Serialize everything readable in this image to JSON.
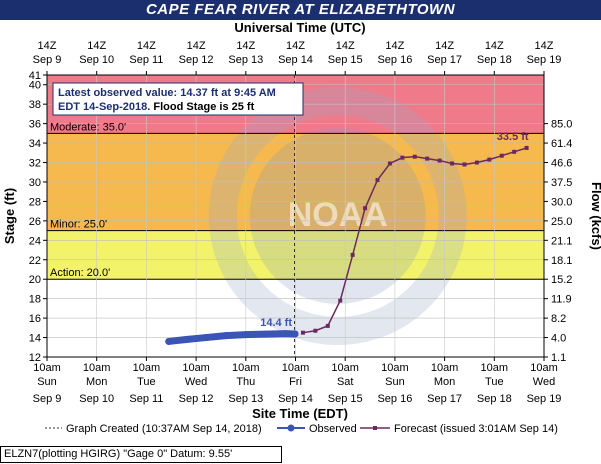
{
  "title": "CAPE FEAR RIVER AT ELIZABETHTOWN",
  "top_axis_title": "Universal Time (UTC)",
  "bottom_axis_title": "Site Time (EDT)",
  "left_axis_title": "Stage (ft)",
  "right_axis_title": "Flow (kcfs)",
  "utc_ticks": [
    {
      "hour": "14Z",
      "date": "Sep 9"
    },
    {
      "hour": "14Z",
      "date": "Sep 10"
    },
    {
      "hour": "14Z",
      "date": "Sep 11"
    },
    {
      "hour": "14Z",
      "date": "Sep 12"
    },
    {
      "hour": "14Z",
      "date": "Sep 13"
    },
    {
      "hour": "14Z",
      "date": "Sep 14"
    },
    {
      "hour": "14Z",
      "date": "Sep 15"
    },
    {
      "hour": "14Z",
      "date": "Sep 16"
    },
    {
      "hour": "14Z",
      "date": "Sep 17"
    },
    {
      "hour": "14Z",
      "date": "Sep 18"
    },
    {
      "hour": "14Z",
      "date": "Sep 19"
    }
  ],
  "edt_ticks": [
    {
      "time": "10am",
      "day": "Sun",
      "date": "Sep 9"
    },
    {
      "time": "10am",
      "day": "Mon",
      "date": "Sep 10"
    },
    {
      "time": "10am",
      "day": "Tue",
      "date": "Sep 11"
    },
    {
      "time": "10am",
      "day": "Wed",
      "date": "Sep 12"
    },
    {
      "time": "10am",
      "day": "Thu",
      "date": "Sep 13"
    },
    {
      "time": "10am",
      "day": "Fri",
      "date": "Sep 14"
    },
    {
      "time": "10am",
      "day": "Sat",
      "date": "Sep 15"
    },
    {
      "time": "10am",
      "day": "Sun",
      "date": "Sep 16"
    },
    {
      "time": "10am",
      "day": "Mon",
      "date": "Sep 17"
    },
    {
      "time": "10am",
      "day": "Tue",
      "date": "Sep 18"
    },
    {
      "time": "10am",
      "day": "Wed",
      "date": "Sep 19"
    }
  ],
  "stage_ticks": [
    12,
    14,
    16,
    18,
    20,
    22,
    24,
    26,
    28,
    30,
    32,
    34,
    36,
    38,
    40,
    41
  ],
  "flow_ticks": [
    {
      "stage": 12,
      "label": "1.1"
    },
    {
      "stage": 14,
      "label": "4.0"
    },
    {
      "stage": 16,
      "label": "8.2"
    },
    {
      "stage": 18,
      "label": "11.9"
    },
    {
      "stage": 20,
      "label": "15.2"
    },
    {
      "stage": 22,
      "label": "18.1"
    },
    {
      "stage": 24,
      "label": "21.1"
    },
    {
      "stage": 26,
      "label": "25.0"
    },
    {
      "stage": 28,
      "label": "30.0"
    },
    {
      "stage": 30,
      "label": "37.5"
    },
    {
      "stage": 32,
      "label": "46.6"
    },
    {
      "stage": 34,
      "label": "61.4"
    },
    {
      "stage": 36,
      "label": "85.0"
    }
  ],
  "colors": {
    "title_bg": "#1b2f6e",
    "major_band": "#f07a8a",
    "moderate_band": "#f5b94d",
    "minor_band": "#f3f36b",
    "action_band": "#ffffff",
    "observed": "#3a55b4",
    "forecast": "#6b2a5e"
  },
  "info_box": {
    "line1": "Latest observed value: 14.37 ft at 9:45 AM",
    "line2_prefix": "EDT 14-Sep-2018.",
    "line2_suffix": " Flood Stage is 25 ft"
  },
  "labels": {
    "moderate": "Moderate: 35.0'",
    "minor": "Minor: 25.0'",
    "action": "Action: 20.0'",
    "observed_last": "14.4 ft",
    "forecast_peak": "33.5 ft"
  },
  "legend": {
    "created": "Graph Created (10:37AM Sep 14, 2018)",
    "observed": "Observed",
    "forecast": "Forecast (issued 3:01AM Sep 14)"
  },
  "footer": "ELZN7(plotting HGIRG) \"Gage 0\" Datum: 9.55'",
  "chart_data": {
    "type": "line",
    "title": "CAPE FEAR RIVER AT ELIZABETHTOWN",
    "xlabel": "Site Time (EDT)",
    "ylabel": "Stage (ft)",
    "y2label": "Flow (kcfs)",
    "x_unit": "days after Sep 9 10am EDT",
    "xlim": [
      0,
      10
    ],
    "ylim": [
      12,
      41
    ],
    "flood_categories": {
      "action": 20,
      "minor": 25,
      "moderate": 35,
      "major": 41
    },
    "series": [
      {
        "name": "Observed",
        "x": [
          2.45,
          2.8,
          3.2,
          3.6,
          4.0,
          4.4,
          4.8,
          4.99
        ],
        "y": [
          13.6,
          13.8,
          14.0,
          14.2,
          14.3,
          14.35,
          14.4,
          14.37
        ]
      },
      {
        "name": "Forecast",
        "x": [
          5.15,
          5.4,
          5.65,
          5.9,
          6.15,
          6.4,
          6.65,
          6.9,
          7.15,
          7.4,
          7.65,
          7.9,
          8.15,
          8.4,
          8.65,
          8.9,
          9.15,
          9.4,
          9.65
        ],
        "y": [
          14.5,
          14.7,
          15.2,
          17.8,
          22.5,
          27.3,
          30.2,
          31.9,
          32.5,
          32.6,
          32.4,
          32.2,
          31.9,
          31.8,
          32.0,
          32.3,
          32.7,
          33.1,
          33.5
        ]
      }
    ],
    "created_marker_x": 4.98
  }
}
